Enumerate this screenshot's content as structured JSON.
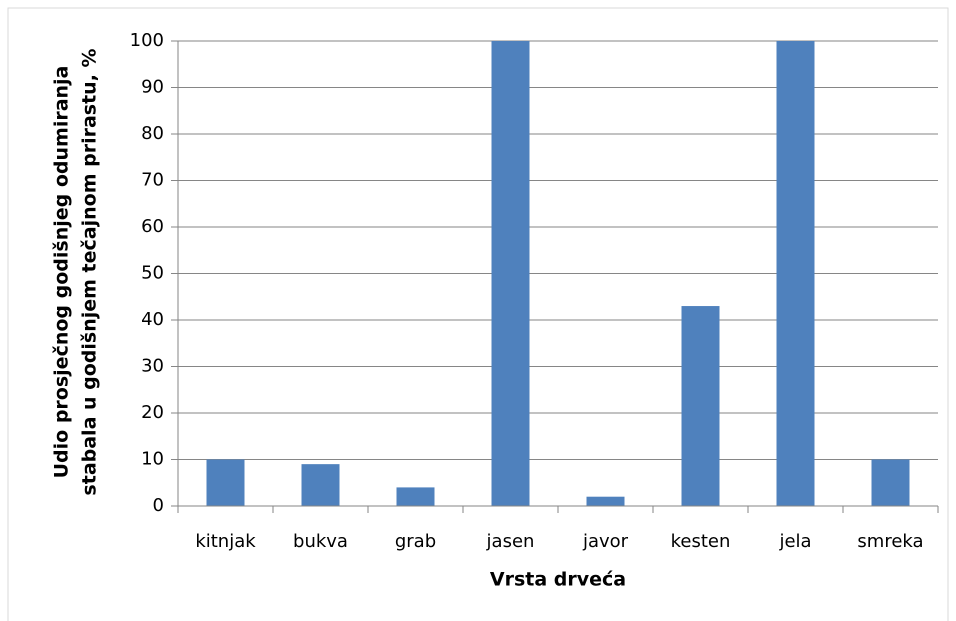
{
  "chart_data": {
    "type": "bar",
    "categories": [
      "kitnjak",
      "bukva",
      "grab",
      "jasen",
      "javor",
      "kesten",
      "jela",
      "smreka"
    ],
    "values": [
      10,
      9,
      4,
      100,
      2,
      43,
      100,
      10
    ],
    "color": "#4f81bd",
    "ylim": [
      0,
      100
    ],
    "yticks": [
      0,
      10,
      20,
      30,
      40,
      50,
      60,
      70,
      80,
      90,
      100
    ],
    "grid": true,
    "xlabel": "Vrsta drveća",
    "ylabel": [
      "Udio prosječnog godišnjeg odumiranja",
      "stabala u godišnjem tečajnom prirastu, %"
    ]
  }
}
